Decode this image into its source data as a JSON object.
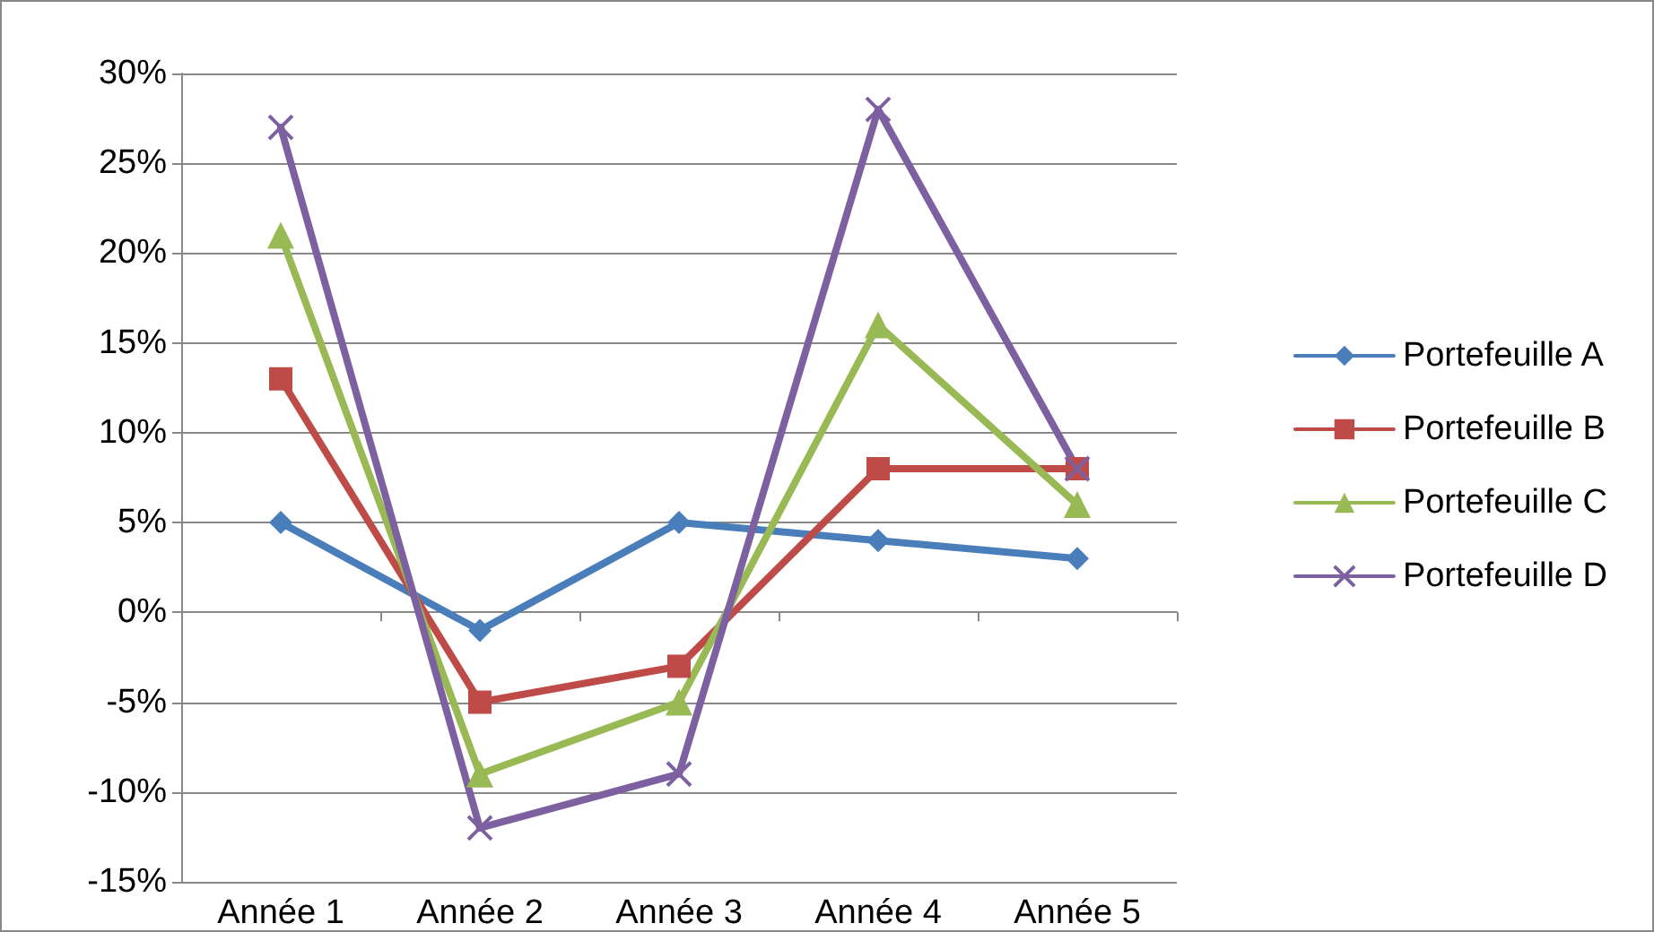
{
  "chart_data": {
    "type": "line",
    "categories": [
      "Année 1",
      "Année 2",
      "Année 3",
      "Année 4",
      "Année 5"
    ],
    "series": [
      {
        "name": "Portefeuille A",
        "color": "#4a7ebb",
        "marker": "diamond",
        "values": [
          5,
          -1,
          5,
          4,
          3
        ]
      },
      {
        "name": "Portefeuille B",
        "color": "#be4b48",
        "marker": "square",
        "values": [
          13,
          -5,
          -3,
          8,
          8
        ]
      },
      {
        "name": "Portefeuille C",
        "color": "#98b954",
        "marker": "triangle",
        "values": [
          21,
          -9,
          -5,
          16,
          6
        ]
      },
      {
        "name": "Portefeuille D",
        "color": "#7d60a0",
        "marker": "cross",
        "values": [
          27,
          -12,
          -9,
          28,
          8
        ]
      }
    ],
    "ylim": [
      -15,
      30
    ],
    "yticks": [
      {
        "value": -15,
        "label": "-15%"
      },
      {
        "value": -10,
        "label": "-10%"
      },
      {
        "value": -5,
        "label": "-5%"
      },
      {
        "value": 0,
        "label": "0%"
      },
      {
        "value": 5,
        "label": "5%"
      },
      {
        "value": 10,
        "label": "10%"
      },
      {
        "value": 15,
        "label": "15%"
      },
      {
        "value": 20,
        "label": "20%"
      },
      {
        "value": 25,
        "label": "25%"
      },
      {
        "value": 30,
        "label": "30%"
      }
    ],
    "grid": "y",
    "legend": "right",
    "line_style": "solid"
  }
}
